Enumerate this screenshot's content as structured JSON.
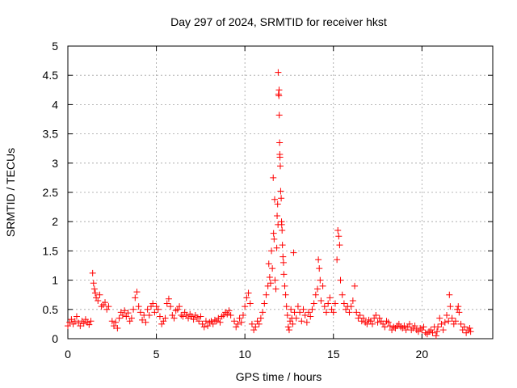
{
  "chart_data": {
    "type": "scatter",
    "title": "Day 297 of 2024, SRMTID for receiver hkst",
    "xlabel": "GPS time / hours",
    "ylabel": "SRMTID / TECUs",
    "xlim": [
      0,
      24
    ],
    "ylim": [
      0,
      5
    ],
    "xticks": [
      0,
      5,
      10,
      15,
      20
    ],
    "yticks": [
      0,
      0.5,
      1,
      1.5,
      2,
      2.5,
      3,
      3.5,
      4,
      4.5,
      5
    ],
    "xtick_labels": [
      "0",
      "5",
      "10",
      "15",
      "20"
    ],
    "ytick_labels": [
      "0",
      "0.5",
      "1",
      "1.5",
      "2",
      "2.5",
      "3",
      "3.5",
      "4",
      "4.5",
      "5"
    ],
    "grid": true,
    "marker": "+",
    "color": "#ff0000",
    "series": [
      {
        "name": "SRMTID",
        "points": [
          [
            0.0,
            0.22
          ],
          [
            0.1,
            0.28
          ],
          [
            0.2,
            0.33
          ],
          [
            0.3,
            0.25
          ],
          [
            0.4,
            0.3
          ],
          [
            0.5,
            0.38
          ],
          [
            0.6,
            0.27
          ],
          [
            0.7,
            0.22
          ],
          [
            0.8,
            0.3
          ],
          [
            0.9,
            0.26
          ],
          [
            1.0,
            0.33
          ],
          [
            1.1,
            0.28
          ],
          [
            1.2,
            0.24
          ],
          [
            1.3,
            0.3
          ],
          [
            1.4,
            1.12
          ],
          [
            1.45,
            0.95
          ],
          [
            1.5,
            0.85
          ],
          [
            1.55,
            0.78
          ],
          [
            1.6,
            0.7
          ],
          [
            1.7,
            0.65
          ],
          [
            1.8,
            0.75
          ],
          [
            1.9,
            0.55
          ],
          [
            2.0,
            0.58
          ],
          [
            2.1,
            0.62
          ],
          [
            2.2,
            0.5
          ],
          [
            2.3,
            0.55
          ],
          [
            2.5,
            0.3
          ],
          [
            2.6,
            0.22
          ],
          [
            2.7,
            0.28
          ],
          [
            2.8,
            0.18
          ],
          [
            2.9,
            0.35
          ],
          [
            3.0,
            0.45
          ],
          [
            3.1,
            0.4
          ],
          [
            3.2,
            0.48
          ],
          [
            3.3,
            0.38
          ],
          [
            3.4,
            0.44
          ],
          [
            3.5,
            0.3
          ],
          [
            3.6,
            0.35
          ],
          [
            3.7,
            0.5
          ],
          [
            3.8,
            0.7
          ],
          [
            3.9,
            0.8
          ],
          [
            4.0,
            0.55
          ],
          [
            4.1,
            0.45
          ],
          [
            4.2,
            0.32
          ],
          [
            4.3,
            0.4
          ],
          [
            4.4,
            0.28
          ],
          [
            4.5,
            0.5
          ],
          [
            4.6,
            0.4
          ],
          [
            4.7,
            0.55
          ],
          [
            4.8,
            0.6
          ],
          [
            4.9,
            0.45
          ],
          [
            5.0,
            0.55
          ],
          [
            5.1,
            0.5
          ],
          [
            5.2,
            0.38
          ],
          [
            5.3,
            0.25
          ],
          [
            5.4,
            0.3
          ],
          [
            5.5,
            0.35
          ],
          [
            5.6,
            0.6
          ],
          [
            5.7,
            0.68
          ],
          [
            5.8,
            0.55
          ],
          [
            5.9,
            0.4
          ],
          [
            6.0,
            0.35
          ],
          [
            6.1,
            0.48
          ],
          [
            6.2,
            0.5
          ],
          [
            6.3,
            0.55
          ],
          [
            6.4,
            0.4
          ],
          [
            6.5,
            0.38
          ],
          [
            6.6,
            0.45
          ],
          [
            6.7,
            0.4
          ],
          [
            6.8,
            0.35
          ],
          [
            6.9,
            0.42
          ],
          [
            7.0,
            0.38
          ],
          [
            7.1,
            0.33
          ],
          [
            7.2,
            0.4
          ],
          [
            7.3,
            0.36
          ],
          [
            7.4,
            0.3
          ],
          [
            7.5,
            0.38
          ],
          [
            7.6,
            0.25
          ],
          [
            7.7,
            0.2
          ],
          [
            7.8,
            0.3
          ],
          [
            7.9,
            0.22
          ],
          [
            8.0,
            0.28
          ],
          [
            8.1,
            0.3
          ],
          [
            8.2,
            0.25
          ],
          [
            8.3,
            0.32
          ],
          [
            8.4,
            0.3
          ],
          [
            8.5,
            0.35
          ],
          [
            8.6,
            0.28
          ],
          [
            8.7,
            0.38
          ],
          [
            8.8,
            0.4
          ],
          [
            8.9,
            0.45
          ],
          [
            9.0,
            0.42
          ],
          [
            9.1,
            0.48
          ],
          [
            9.2,
            0.4
          ],
          [
            9.4,
            0.3
          ],
          [
            9.5,
            0.2
          ],
          [
            9.6,
            0.25
          ],
          [
            9.7,
            0.35
          ],
          [
            9.8,
            0.28
          ],
          [
            9.9,
            0.4
          ],
          [
            10.0,
            0.55
          ],
          [
            10.1,
            0.7
          ],
          [
            10.2,
            0.78
          ],
          [
            10.3,
            0.6
          ],
          [
            10.4,
            0.25
          ],
          [
            10.5,
            0.15
          ],
          [
            10.6,
            0.2
          ],
          [
            10.7,
            0.3
          ],
          [
            10.8,
            0.25
          ],
          [
            10.9,
            0.35
          ],
          [
            11.0,
            0.45
          ],
          [
            11.1,
            0.6
          ],
          [
            11.2,
            0.75
          ],
          [
            11.3,
            0.9
          ],
          [
            11.35,
            1.28
          ],
          [
            11.4,
            1.05
          ],
          [
            11.45,
            0.95
          ],
          [
            11.5,
            1.5
          ],
          [
            11.55,
            1.2
          ],
          [
            11.6,
            2.75
          ],
          [
            11.62,
            1.8
          ],
          [
            11.65,
            1.7
          ],
          [
            11.68,
            2.38
          ],
          [
            11.7,
            1.0
          ],
          [
            11.75,
            0.85
          ],
          [
            11.8,
            1.55
          ],
          [
            11.82,
            2.1
          ],
          [
            11.85,
            2.3
          ],
          [
            11.87,
            1.95
          ],
          [
            11.88,
            4.55
          ],
          [
            11.9,
            4.18
          ],
          [
            11.92,
            4.15
          ],
          [
            11.93,
            4.25
          ],
          [
            11.94,
            3.82
          ],
          [
            11.96,
            3.35
          ],
          [
            11.97,
            3.15
          ],
          [
            11.98,
            3.1
          ],
          [
            12.0,
            2.95
          ],
          [
            12.02,
            2.52
          ],
          [
            12.05,
            2.4
          ],
          [
            12.07,
            2.0
          ],
          [
            12.08,
            1.95
          ],
          [
            12.1,
            1.85
          ],
          [
            12.12,
            1.6
          ],
          [
            12.15,
            1.4
          ],
          [
            12.18,
            1.3
          ],
          [
            12.2,
            1.1
          ],
          [
            12.25,
            0.9
          ],
          [
            12.3,
            0.75
          ],
          [
            12.35,
            0.55
          ],
          [
            12.4,
            0.4
          ],
          [
            12.45,
            0.2
          ],
          [
            12.5,
            0.15
          ],
          [
            12.55,
            0.3
          ],
          [
            12.6,
            0.5
          ],
          [
            12.65,
            0.35
          ],
          [
            12.7,
            0.25
          ],
          [
            12.75,
            1.47
          ],
          [
            12.8,
            0.45
          ],
          [
            12.9,
            0.35
          ],
          [
            13.0,
            0.55
          ],
          [
            13.1,
            0.45
          ],
          [
            13.2,
            0.3
          ],
          [
            13.3,
            0.5
          ],
          [
            13.4,
            0.4
          ],
          [
            13.5,
            0.28
          ],
          [
            13.6,
            0.45
          ],
          [
            13.7,
            0.38
          ],
          [
            13.8,
            0.5
          ],
          [
            13.9,
            0.6
          ],
          [
            14.0,
            0.75
          ],
          [
            14.1,
            0.85
          ],
          [
            14.15,
            1.35
          ],
          [
            14.2,
            1.2
          ],
          [
            14.25,
            1.0
          ],
          [
            14.3,
            0.65
          ],
          [
            14.4,
            0.9
          ],
          [
            14.5,
            0.55
          ],
          [
            14.6,
            0.45
          ],
          [
            14.7,
            0.6
          ],
          [
            14.8,
            0.7
          ],
          [
            14.9,
            0.5
          ],
          [
            15.0,
            0.45
          ],
          [
            15.1,
            0.6
          ],
          [
            15.2,
            1.35
          ],
          [
            15.25,
            1.85
          ],
          [
            15.3,
            1.75
          ],
          [
            15.35,
            1.6
          ],
          [
            15.4,
            1.0
          ],
          [
            15.5,
            0.75
          ],
          [
            15.6,
            0.6
          ],
          [
            15.7,
            0.5
          ],
          [
            15.8,
            0.55
          ],
          [
            15.9,
            0.45
          ],
          [
            16.0,
            0.55
          ],
          [
            16.1,
            0.65
          ],
          [
            16.2,
            0.9
          ],
          [
            16.3,
            0.45
          ],
          [
            16.4,
            0.35
          ],
          [
            16.5,
            0.4
          ],
          [
            16.6,
            0.3
          ],
          [
            16.7,
            0.35
          ],
          [
            16.8,
            0.28
          ],
          [
            16.9,
            0.25
          ],
          [
            17.0,
            0.32
          ],
          [
            17.1,
            0.3
          ],
          [
            17.2,
            0.25
          ],
          [
            17.3,
            0.35
          ],
          [
            17.4,
            0.4
          ],
          [
            17.5,
            0.28
          ],
          [
            17.6,
            0.35
          ],
          [
            17.7,
            0.3
          ],
          [
            17.8,
            0.25
          ],
          [
            17.9,
            0.2
          ],
          [
            18.0,
            0.3
          ],
          [
            18.1,
            0.28
          ],
          [
            18.2,
            0.22
          ],
          [
            18.3,
            0.15
          ],
          [
            18.4,
            0.2
          ],
          [
            18.5,
            0.18
          ],
          [
            18.6,
            0.22
          ],
          [
            18.7,
            0.25
          ],
          [
            18.8,
            0.2
          ],
          [
            18.9,
            0.18
          ],
          [
            19.0,
            0.22
          ],
          [
            19.1,
            0.15
          ],
          [
            19.2,
            0.2
          ],
          [
            19.3,
            0.25
          ],
          [
            19.4,
            0.15
          ],
          [
            19.5,
            0.18
          ],
          [
            19.6,
            0.22
          ],
          [
            19.7,
            0.15
          ],
          [
            19.8,
            0.12
          ],
          [
            19.9,
            0.18
          ],
          [
            20.0,
            0.15
          ],
          [
            20.1,
            0.2
          ],
          [
            20.2,
            0.1
          ],
          [
            20.3,
            0.08
          ],
          [
            20.4,
            0.12
          ],
          [
            20.5,
            0.15
          ],
          [
            20.6,
            0.1
          ],
          [
            20.7,
            0.2
          ],
          [
            20.8,
            0.05
          ],
          [
            20.85,
            0.12
          ],
          [
            20.9,
            0.2
          ],
          [
            21.0,
            0.35
          ],
          [
            21.1,
            0.25
          ],
          [
            21.2,
            0.15
          ],
          [
            21.3,
            0.28
          ],
          [
            21.4,
            0.4
          ],
          [
            21.5,
            0.3
          ],
          [
            21.55,
            0.75
          ],
          [
            21.6,
            0.55
          ],
          [
            21.7,
            0.35
          ],
          [
            21.8,
            0.25
          ],
          [
            21.9,
            0.3
          ],
          [
            22.0,
            0.5
          ],
          [
            22.05,
            0.55
          ],
          [
            22.1,
            0.45
          ],
          [
            22.2,
            0.25
          ],
          [
            22.3,
            0.15
          ],
          [
            22.4,
            0.2
          ],
          [
            22.5,
            0.1
          ],
          [
            22.6,
            0.15
          ],
          [
            22.7,
            0.18
          ],
          [
            22.75,
            0.12
          ]
        ]
      }
    ]
  }
}
